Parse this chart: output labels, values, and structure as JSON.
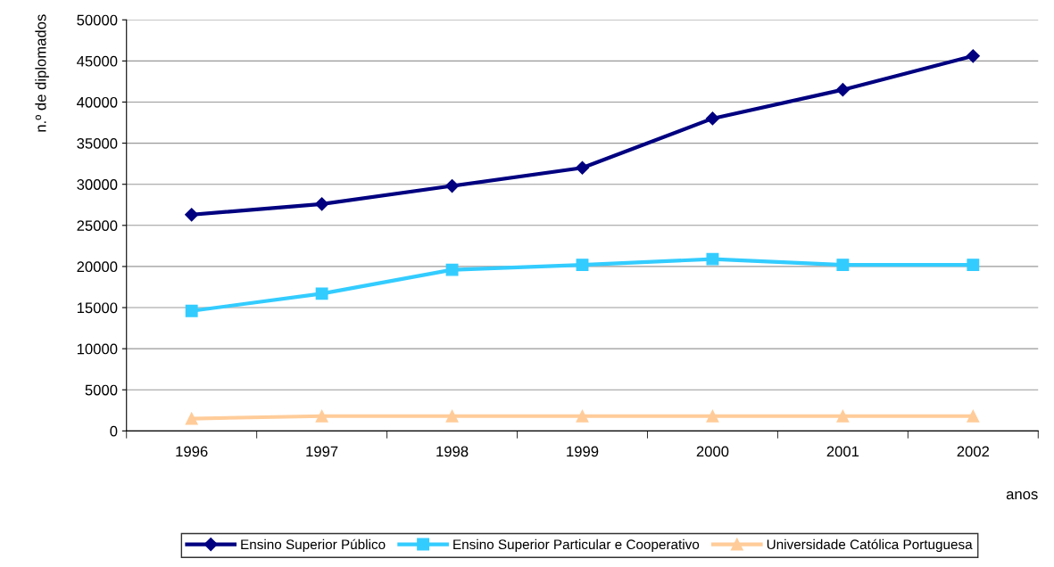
{
  "chart_data": {
    "type": "line",
    "ylabel": "n.º de diplomados",
    "xlabel": "anos",
    "categories": [
      "1996",
      "1997",
      "1998",
      "1999",
      "2000",
      "2001",
      "2002"
    ],
    "series": [
      {
        "name": "Ensino Superior Público",
        "color": "#000080",
        "marker": "diamond",
        "values": [
          26300,
          27600,
          29800,
          32000,
          38000,
          41500,
          45600
        ]
      },
      {
        "name": "Ensino Superior Particular e Cooperativo",
        "color": "#33ccff",
        "marker": "square",
        "values": [
          14600,
          16700,
          19600,
          20200,
          20900,
          20200,
          20200
        ]
      },
      {
        "name": "Universidade Católica Portuguesa",
        "color": "#ffcc99",
        "marker": "triangle",
        "values": [
          1500,
          1800,
          1800,
          1800,
          1800,
          1800,
          1800
        ]
      }
    ],
    "ylim": [
      0,
      50000
    ],
    "yticks": [
      0,
      5000,
      10000,
      15000,
      20000,
      25000,
      30000,
      35000,
      40000,
      45000,
      50000
    ],
    "grid": "y",
    "legend": "bottom"
  }
}
